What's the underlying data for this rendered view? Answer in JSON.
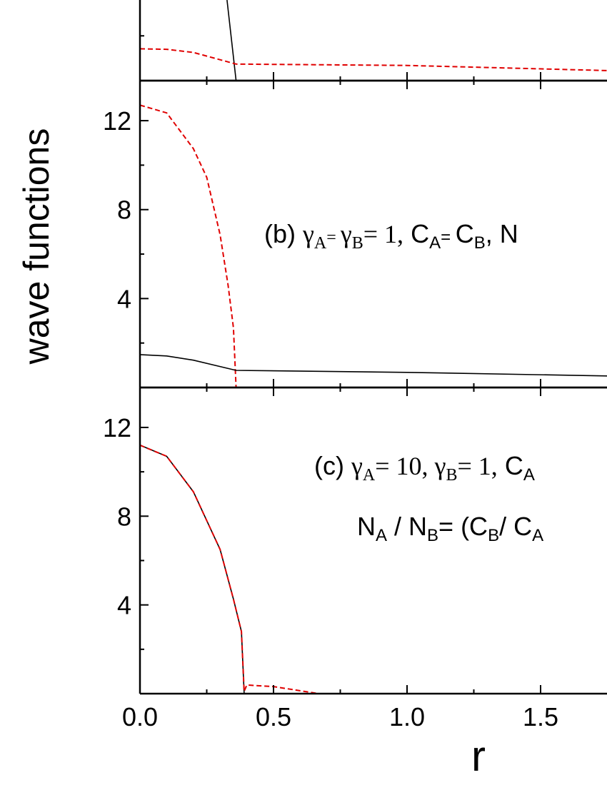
{
  "chart_data": [
    {
      "type": "line",
      "xlim": [
        0,
        1.75
      ],
      "ylim": [
        0,
        3.6
      ],
      "xticks": [
        0,
        0.5,
        1,
        1.5
      ],
      "minor_xticks": [
        0.25,
        0.75,
        1.25
      ],
      "yticks": [],
      "minor_yticks": [
        2
      ],
      "series": [
        {
          "color": "#000000",
          "dash": false,
          "x": [
            0.326,
            0.36,
            1.75
          ],
          "values": [
            3.6,
            0,
            0
          ]
        },
        {
          "color": "#e00000",
          "dash": true,
          "x": [
            0,
            0.1,
            0.2,
            0.36,
            1.0,
            1.75
          ],
          "values": [
            1.42,
            1.4,
            1.26,
            0.74,
            0.68,
            0.45
          ]
        }
      ]
    },
    {
      "type": "line",
      "xlim": [
        0,
        1.75
      ],
      "ylim": [
        0,
        13.8
      ],
      "xticks": [
        0,
        0.5,
        1,
        1.5
      ],
      "minor_xticks": [
        0.25,
        0.75,
        1.25
      ],
      "yticks": [
        4,
        8,
        12
      ],
      "minor_yticks": [
        2,
        6,
        10
      ],
      "ylabel": "wave functions",
      "annotation": [
        {
          "text": "(b) "
        },
        {
          "text": "γ",
          "font": "serif"
        },
        {
          "text": "A",
          "font": "serif",
          "sub": true
        },
        {
          "text": "= ",
          "font": "serif",
          "small": true
        },
        {
          "text": "γ",
          "font": "serif"
        },
        {
          "text": "B",
          "font": "serif",
          "sub": true
        },
        {
          "text": "= 1,",
          "font": "serif"
        },
        {
          "text": "   C"
        },
        {
          "text": "A",
          "sub": true
        },
        {
          "text": "= ",
          "small": true
        },
        {
          "text": "C"
        },
        {
          "text": "B",
          "sub": true
        },
        {
          "text": ",  N"
        }
      ],
      "series": [
        {
          "color": "#e00000",
          "dash": true,
          "x": [
            0,
            0.1,
            0.2,
            0.25,
            0.3,
            0.33,
            0.35,
            0.36,
            1.75
          ],
          "values": [
            12.7,
            12.35,
            10.74,
            9.45,
            6.87,
            4.6,
            2.68,
            0,
            0
          ]
        },
        {
          "color": "#000000",
          "dash": false,
          "x": [
            0,
            0.1,
            0.2,
            0.36,
            1.0,
            1.75
          ],
          "values": [
            1.48,
            1.42,
            1.23,
            0.77,
            0.68,
            0.52
          ]
        }
      ]
    },
    {
      "type": "line",
      "xlim": [
        0,
        1.75
      ],
      "ylim": [
        0,
        13.8
      ],
      "xticks": [
        {
          "value": 0,
          "label": "0.0"
        },
        0.5,
        {
          "value": 1,
          "label": "1.0"
        },
        1.5
      ],
      "minor_xticks": [
        0.25,
        0.75,
        1.25
      ],
      "yticks": [
        4,
        8,
        12
      ],
      "minor_yticks": [
        2,
        6,
        10
      ],
      "xlabel": "r",
      "annotation": [
        {
          "text": "(c)  "
        },
        {
          "text": "γ",
          "font": "serif"
        },
        {
          "text": "A",
          "font": "serif",
          "sub": true
        },
        {
          "text": "= 10, ",
          "font": "serif"
        },
        {
          "text": "γ",
          "font": "serif"
        },
        {
          "text": "B",
          "font": "serif",
          "sub": true
        },
        {
          "text": "= 1,",
          "font": "serif"
        },
        {
          "text": "   C"
        },
        {
          "text": "A",
          "sub": true
        }
      ],
      "annotation2": [
        {
          "text": "N"
        },
        {
          "text": "A",
          "sub": true
        },
        {
          "text": " / N"
        },
        {
          "text": "B",
          "sub": true
        },
        {
          "text": "= (C"
        },
        {
          "text": "B",
          "sub": true
        },
        {
          "text": "/ C"
        },
        {
          "text": "A",
          "sub": true
        }
      ],
      "series": [
        {
          "color": "#000000",
          "dash": false,
          "x": [
            0,
            0.1,
            0.2,
            0.3,
            0.35,
            0.38,
            0.39,
            1.75
          ],
          "values": [
            11.2,
            10.7,
            9.1,
            6.5,
            4.26,
            2.8,
            0,
            0
          ]
        },
        {
          "color": "#e00000",
          "dash": true,
          "x": [
            0,
            0.1,
            0.2,
            0.3,
            0.35,
            0.38,
            0.39,
            0.4,
            0.5,
            0.67,
            1.75
          ],
          "values": [
            11.2,
            10.7,
            9.1,
            6.5,
            4.26,
            2.8,
            0.1,
            0.39,
            0.32,
            0,
            0
          ]
        }
      ]
    }
  ]
}
